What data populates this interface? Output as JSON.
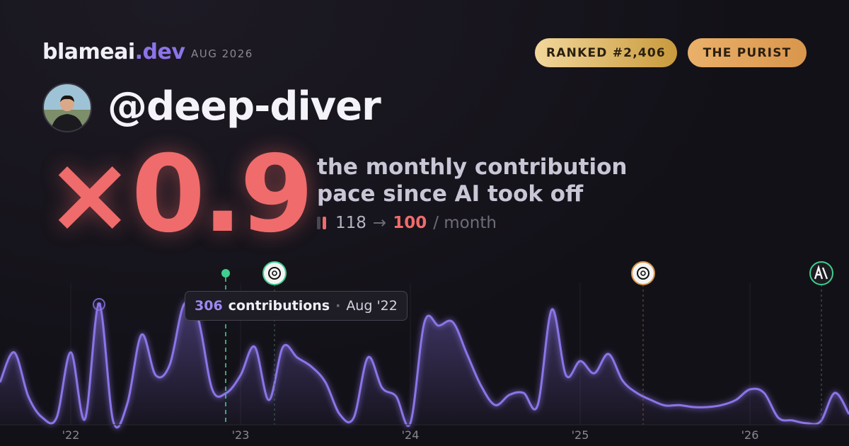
{
  "header": {
    "brand": "blameai",
    "brand_tld": ".dev",
    "date": "AUG 2026",
    "badges": [
      "RANKED #2,406",
      "THE PURIST"
    ]
  },
  "profile": {
    "handle": "@deep-diver"
  },
  "stat": {
    "multiplier": "×0.9",
    "description": [
      "the monthly contribution",
      "pace since AI took off"
    ],
    "before": 118,
    "arrow": "→",
    "after": 100,
    "unit": "/ month"
  },
  "tooltip": {
    "label": "contributions",
    "separator": "·",
    "date": "Aug '22"
  },
  "chart_data": {
    "type": "area",
    "color": "#8b74e8",
    "categories": [
      null,
      null,
      null,
      null,
      null,
      "'22",
      null,
      null,
      null,
      null,
      null,
      null,
      null,
      null,
      null,
      null,
      null,
      "'23",
      null,
      null,
      null,
      null,
      null,
      null,
      null,
      null,
      null,
      null,
      null,
      "'24",
      null,
      null,
      null,
      null,
      null,
      null,
      null,
      null,
      null,
      null,
      null,
      "'25",
      null,
      null,
      null,
      null,
      null,
      null,
      null,
      null,
      null,
      null,
      null,
      "'26",
      null,
      null,
      null,
      null,
      null,
      null,
      null
    ],
    "values": [
      108,
      184,
      72,
      18,
      18,
      184,
      14,
      306,
      9,
      54,
      229,
      126,
      153,
      306,
      270,
      90,
      81,
      126,
      198,
      63,
      198,
      171,
      148,
      108,
      27,
      18,
      171,
      94,
      72,
      4,
      261,
      252,
      261,
      180,
      99,
      50,
      76,
      81,
      50,
      293,
      126,
      162,
      131,
      180,
      112,
      81,
      63,
      49,
      50,
      45,
      45,
      50,
      63,
      90,
      81,
      18,
      11,
      4,
      9,
      81,
      27
    ],
    "ylim": [
      0,
      360
    ]
  }
}
